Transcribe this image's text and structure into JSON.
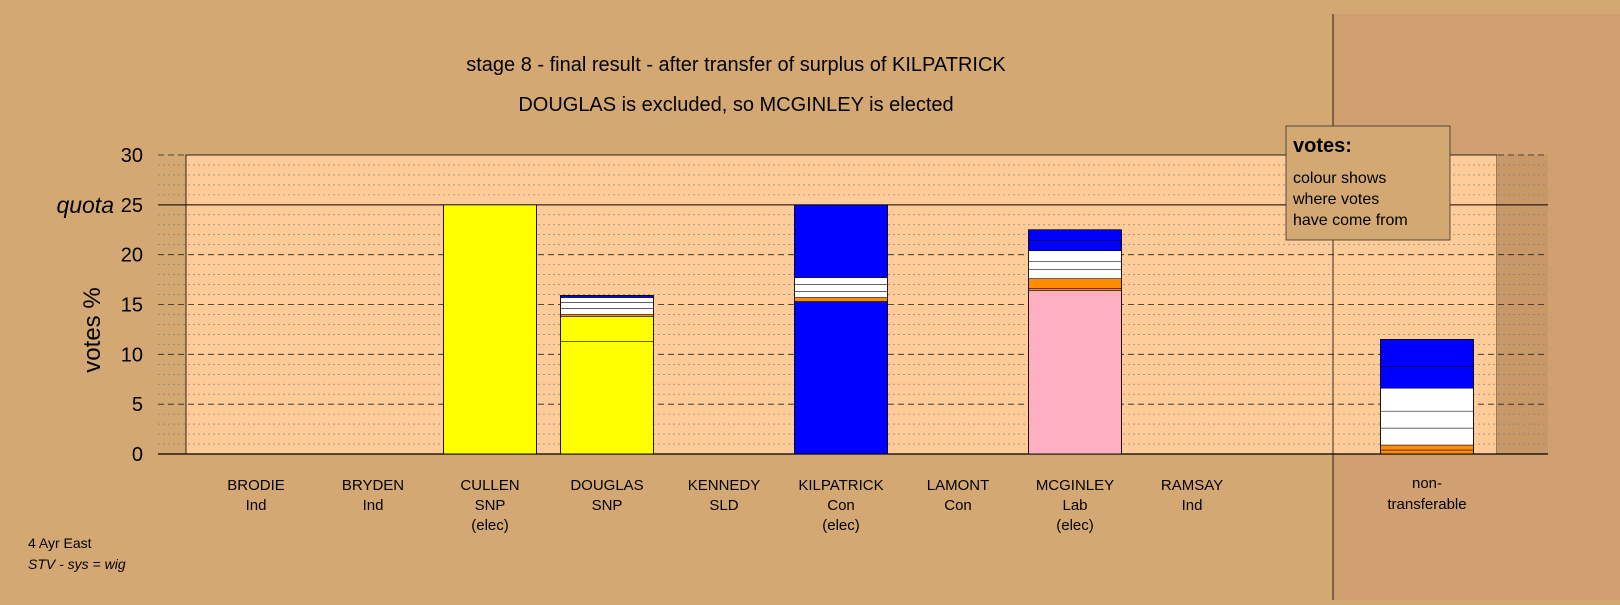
{
  "title_line1": "stage 8 - final result - after transfer of surplus of KILPATRICK",
  "title_line2": "DOUGLAS is excluded, so MCGINLEY is elected",
  "footer": {
    "line1": "4 Ayr East",
    "line2": "STV - sys = wig"
  },
  "legend": {
    "title": "votes:",
    "lines": [
      "colour shows",
      "where votes",
      "have come from"
    ]
  },
  "colors": {
    "background": "#d4a873",
    "plot_area": "#ffcc99",
    "SNP": "#ffff00",
    "Con": "#0000ff",
    "Lab": "#ffb0c0",
    "SLD": "#ff8c00",
    "Ind": "#ffffff",
    "nt_panel": "#d0a070"
  },
  "chart_data": {
    "type": "bar",
    "stacked": true,
    "ylabel": "votes %",
    "ylim": [
      0,
      30
    ],
    "yticks": [
      0,
      5,
      10,
      15,
      20,
      25,
      30
    ],
    "quota": {
      "label": "quota",
      "value": 25
    },
    "grid": true,
    "legend_position": "top-right",
    "candidates": [
      {
        "name": "BRODIE",
        "party": "Ind",
        "status": "",
        "segments": []
      },
      {
        "name": "BRYDEN",
        "party": "Ind",
        "status": "",
        "segments": []
      },
      {
        "name": "CULLEN",
        "party": "SNP",
        "status": "(elec)",
        "segments": [
          {
            "color": "#ffff00",
            "value": 25.0
          }
        ]
      },
      {
        "name": "DOUGLAS",
        "party": "SNP",
        "status": "",
        "segments": [
          {
            "color": "#ffff00",
            "value": 11.3
          },
          {
            "color": "#ffff00",
            "value": 2.5
          },
          {
            "color": "#ff8c00",
            "value": 0.2
          },
          {
            "color": "#ffffff",
            "value": 0.6
          },
          {
            "color": "#ffffff",
            "value": 0.6
          },
          {
            "color": "#ffffff",
            "value": 0.5
          },
          {
            "color": "#0000ff",
            "value": 0.2
          }
        ]
      },
      {
        "name": "KENNEDY",
        "party": "SLD",
        "status": "",
        "segments": []
      },
      {
        "name": "KILPATRICK",
        "party": "Con",
        "status": "(elec)",
        "segments": [
          {
            "color": "#0000ff",
            "value": 15.3
          },
          {
            "color": "#ff8c00",
            "value": 0.4
          },
          {
            "color": "#ffffff",
            "value": 0.6
          },
          {
            "color": "#ffffff",
            "value": 0.7
          },
          {
            "color": "#ffffff",
            "value": 0.7
          },
          {
            "color": "#0000ff",
            "value": 7.3
          }
        ]
      },
      {
        "name": "LAMONT",
        "party": "Con",
        "status": "",
        "segments": []
      },
      {
        "name": "MCGINLEY",
        "party": "Lab",
        "status": "(elec)",
        "segments": [
          {
            "color": "#ffb0c0",
            "value": 16.4
          },
          {
            "color": "#ff8c00",
            "value": 0.2
          },
          {
            "color": "#ff8c00",
            "value": 1.0
          },
          {
            "color": "#ffffff",
            "value": 0.9
          },
          {
            "color": "#ffffff",
            "value": 0.8
          },
          {
            "color": "#ffffff",
            "value": 1.1
          },
          {
            "color": "#0000ff",
            "value": 1.0
          },
          {
            "color": "#0000ff",
            "value": 1.1
          }
        ]
      },
      {
        "name": "RAMSAY",
        "party": "Ind",
        "status": "",
        "segments": []
      }
    ],
    "non_transferable": {
      "label_line1": "non-",
      "label_line2": "transferable",
      "segments": [
        {
          "color": "#ff8c00",
          "value": 0.4
        },
        {
          "color": "#ff8c00",
          "value": 0.5
        },
        {
          "color": "#ffffff",
          "value": 1.7
        },
        {
          "color": "#ffffff",
          "value": 1.7
        },
        {
          "color": "#ffffff",
          "value": 2.3
        },
        {
          "color": "#0000ff",
          "value": 2.2
        },
        {
          "color": "#0000ff",
          "value": 2.7
        }
      ]
    }
  }
}
